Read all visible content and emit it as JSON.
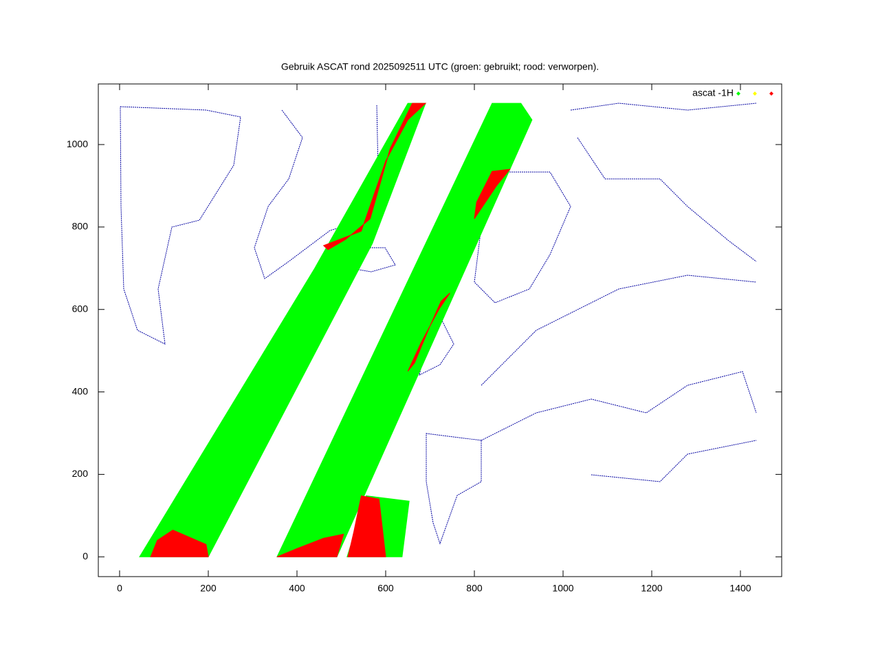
{
  "chart_data": {
    "type": "scatter",
    "title": "Gebruik ASCAT rond 2025092511 UTC (groen: gebruikt; rood: verworpen).",
    "xlim": [
      -48,
      1493
    ],
    "ylim": [
      -48,
      1147
    ],
    "xticks": [
      0,
      200,
      400,
      600,
      800,
      1000,
      1200,
      1400
    ],
    "yticks": [
      0,
      200,
      400,
      600,
      800,
      1000
    ],
    "legend": "top-right",
    "series": [
      {
        "name": "ascat -1H",
        "color": "#00ff00",
        "polygons": [
          {
            "x": [
              45,
              200,
              570,
              690,
              650,
              440,
              45
            ],
            "y": [
              0,
              0,
              760,
              1100,
              1100,
              700,
              0
            ]
          },
          {
            "x": [
              355,
              490,
              930,
              905,
              840,
              355
            ],
            "y": [
              0,
              0,
              1060,
              1100,
              1100,
              0
            ]
          },
          {
            "x": [
              513,
              637,
              653,
              556,
              513
            ],
            "y": [
              0,
              0,
              135,
              148,
              0
            ]
          }
        ]
      },
      {
        "color": "#ffff00",
        "polygons": []
      },
      {
        "color": "#ff0000",
        "polygons": [
          {
            "x": [
              70,
              200,
              195,
              120,
              85
            ],
            "y": [
              0,
              0,
              30,
              65,
              40
            ]
          },
          {
            "x": [
              460,
              545,
              600,
              650,
              690,
              660,
              610,
              565,
              510,
              470
            ],
            "y": [
              755,
              790,
              960,
              1060,
              1100,
              1100,
              990,
              820,
              770,
              745
            ]
          },
          {
            "x": [
              355,
              490,
              505,
              460,
              400
            ],
            "y": [
              0,
              0,
              55,
              45,
              20
            ]
          },
          {
            "x": [
              650,
              680,
              720,
              745,
              725,
              700,
              665
            ],
            "y": [
              450,
              520,
              600,
              640,
              620,
              560,
              470
            ]
          },
          {
            "x": [
              800,
              850,
              880,
              840,
              805
            ],
            "y": [
              820,
              900,
              940,
              935,
              860
            ]
          },
          {
            "x": [
              515,
              600,
              585,
              545,
              528
            ],
            "y": [
              0,
              0,
              140,
              148,
              60
            ]
          }
        ]
      }
    ]
  }
}
